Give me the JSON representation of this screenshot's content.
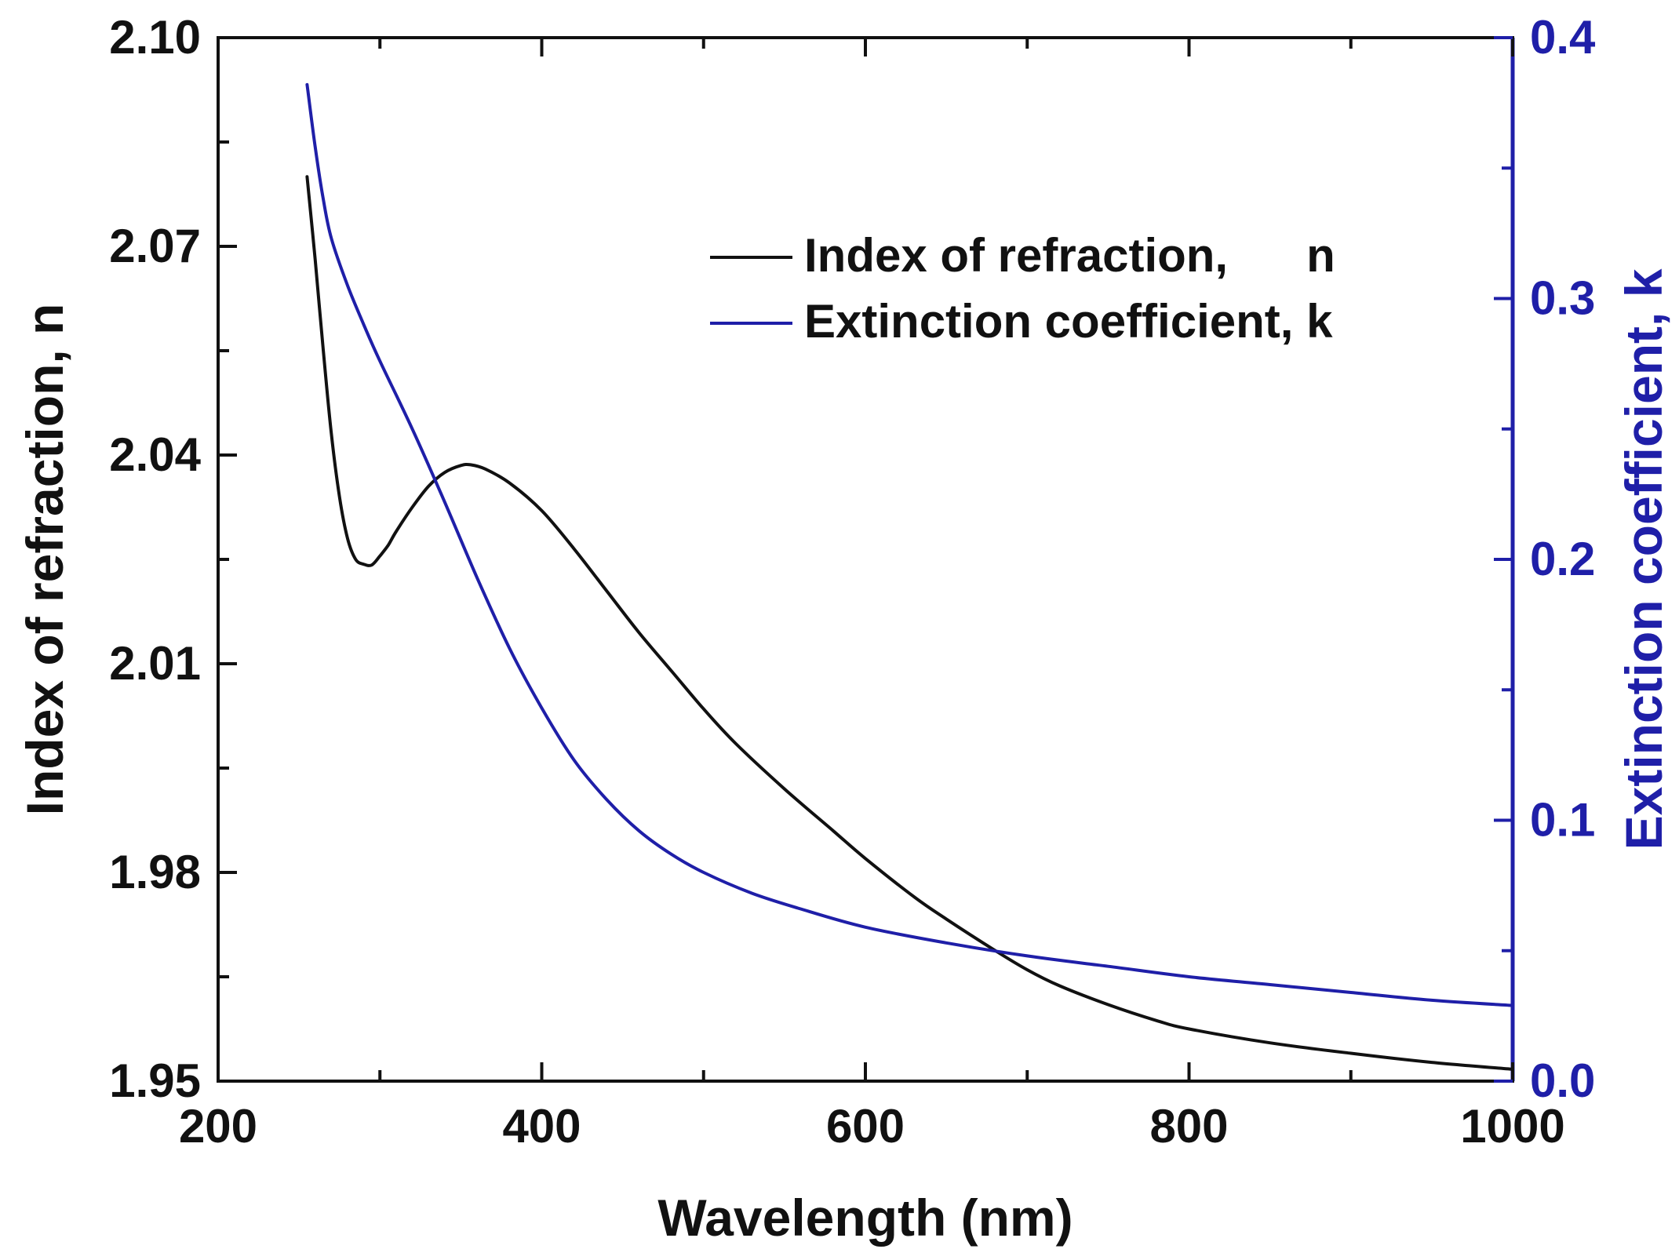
{
  "chart_data": {
    "type": "line",
    "title": "",
    "xlabel": "Wavelength (nm)",
    "ylabel": "Index of refraction, n",
    "y2label": "Extinction coefficient, k",
    "xlim": [
      200,
      1000
    ],
    "ylim": [
      1.95,
      2.1
    ],
    "y2lim": [
      0.0,
      0.4
    ],
    "x_ticks": [
      "200",
      "400",
      "600",
      "800",
      "1000"
    ],
    "y_ticks": [
      "1.95",
      "1.98",
      "2.01",
      "2.04",
      "2.07",
      "2.10"
    ],
    "y2_ticks": [
      "0.0",
      "0.1",
      "0.2",
      "0.3",
      "0.4"
    ],
    "grid": false,
    "legend_position": "upper-center",
    "colors": {
      "n": "#111111",
      "k": "#1f1fa8",
      "axis": "#111111",
      "right_axis": "#1f1fa8"
    },
    "series": [
      {
        "name": "Index of refraction,      n",
        "axis": "left",
        "color": "#111111",
        "x": [
          255,
          260,
          265,
          270,
          275,
          280,
          285,
          290,
          295,
          300,
          305,
          310,
          320,
          330,
          340,
          350,
          356,
          365,
          380,
          400,
          420,
          440,
          460,
          480,
          500,
          520,
          550,
          580,
          600,
          630,
          650,
          680,
          700,
          720,
          750,
          780,
          800,
          850,
          900,
          950,
          1000
        ],
        "y": [
          2.08,
          2.068,
          2.055,
          2.043,
          2.034,
          2.028,
          2.025,
          2.0243,
          2.0242,
          2.0255,
          2.027,
          2.029,
          2.0325,
          2.0355,
          2.0375,
          2.0385,
          2.0386,
          2.038,
          2.036,
          2.032,
          2.0265,
          2.0205,
          2.0145,
          2.009,
          2.0035,
          1.9985,
          1.992,
          1.986,
          1.982,
          1.9765,
          1.9733,
          1.9688,
          1.966,
          1.9637,
          1.961,
          1.9587,
          1.9575,
          1.9555,
          1.954,
          1.9527,
          1.9517
        ]
      },
      {
        "name": "Extinction coefficient, k",
        "axis": "right",
        "color": "#1f1fa8",
        "x": [
          255,
          260,
          265,
          270,
          280,
          290,
          300,
          320,
          340,
          360,
          380,
          400,
          420,
          440,
          460,
          480,
          500,
          530,
          560,
          600,
          650,
          700,
          750,
          800,
          850,
          900,
          950,
          1000
        ],
        "y": [
          0.382,
          0.358,
          0.338,
          0.323,
          0.305,
          0.29,
          0.276,
          0.25,
          0.222,
          0.193,
          0.166,
          0.143,
          0.123,
          0.108,
          0.096,
          0.087,
          0.08,
          0.072,
          0.066,
          0.059,
          0.053,
          0.048,
          0.044,
          0.04,
          0.037,
          0.034,
          0.031,
          0.029
        ]
      }
    ]
  }
}
